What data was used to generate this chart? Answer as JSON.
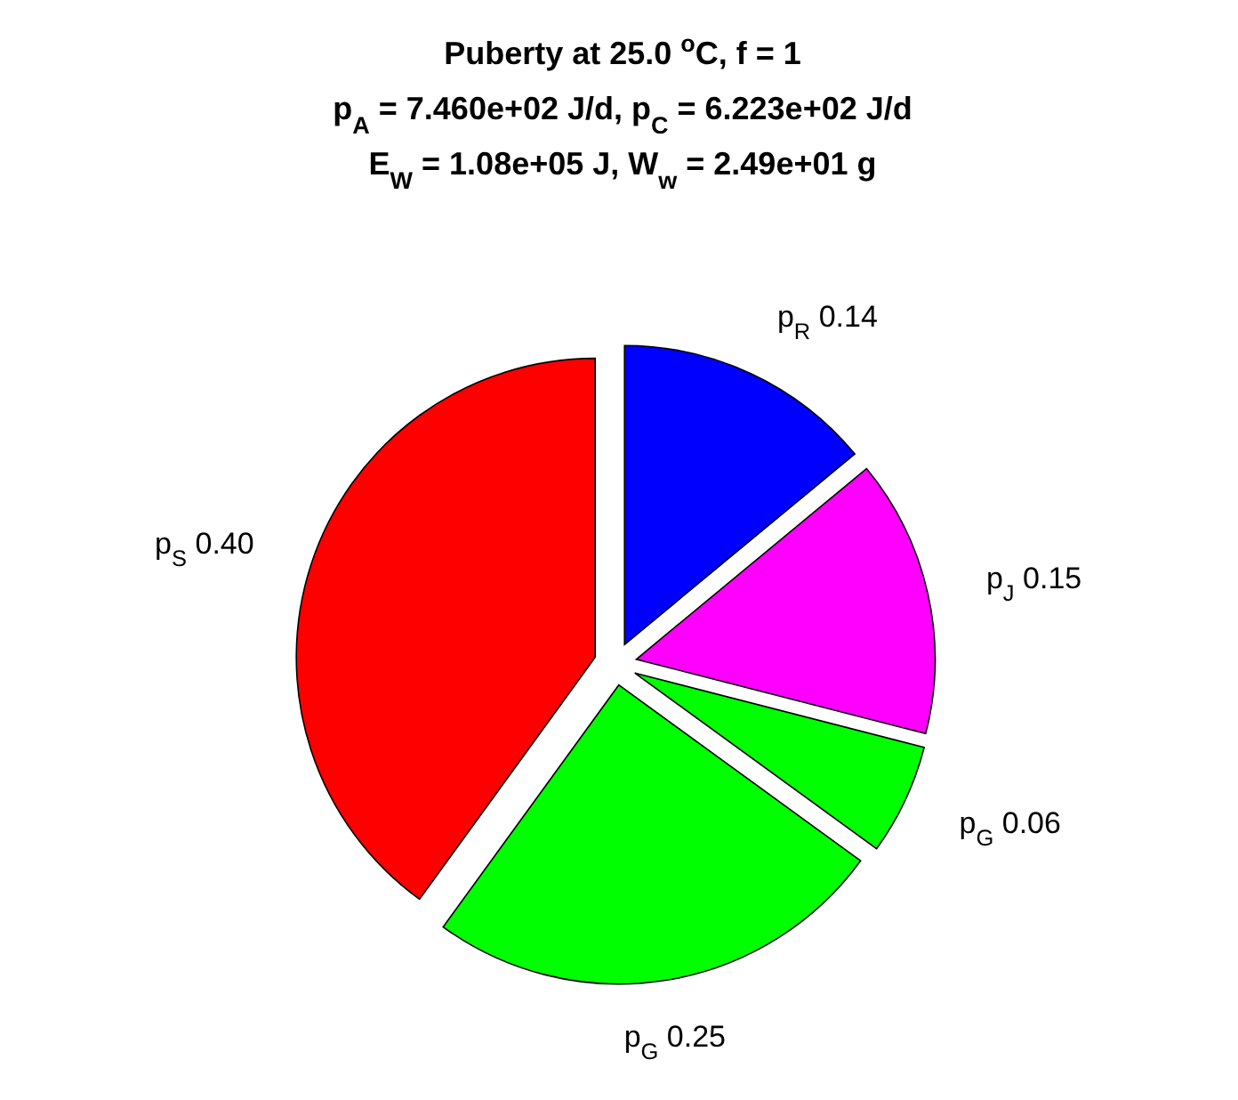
{
  "chart_data": {
    "type": "pie",
    "title": "Puberty at 25.0 $^{o}$C, f = 1\np$_{A}$ = 7.460e+02 J/d,  p$_{C}$ = 6.223e+02 J/d\nE$_{W}$ = 1.08e+05 J, W$_{w}$ = 2.49e+01 g",
    "categories": [
      "p$_{R}$",
      "p$_{J}$",
      "p$_{G}$",
      "p$_{G}$",
      "p$_{S}$"
    ],
    "values": [
      0.14,
      0.15,
      0.06,
      0.25,
      0.4
    ],
    "value_labels": [
      "0.14",
      "0.15",
      "0.06",
      "0.25",
      "0.40"
    ],
    "colors": [
      "#0000ff",
      "#ff00ff",
      "#00ff00",
      "#00ff00",
      "#ff0000"
    ]
  }
}
